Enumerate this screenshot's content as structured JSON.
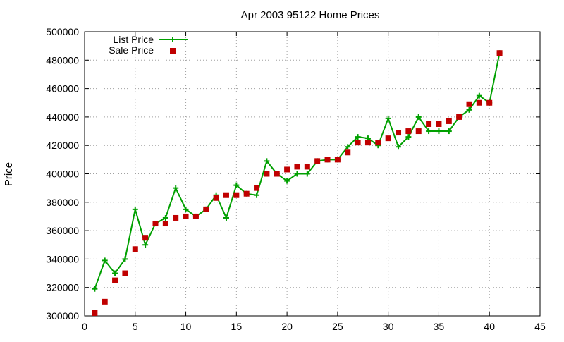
{
  "chart_data": {
    "type": "line",
    "title": "Apr 2003 95122 Home Prices",
    "xlabel": "",
    "ylabel": "Price",
    "xlim": [
      0,
      45
    ],
    "ylim": [
      300000,
      500000
    ],
    "x_ticks": [
      0,
      5,
      10,
      15,
      20,
      25,
      30,
      35,
      40,
      45
    ],
    "y_ticks": [
      300000,
      320000,
      340000,
      360000,
      380000,
      400000,
      420000,
      440000,
      460000,
      480000,
      500000
    ],
    "grid": true,
    "legend_position": "top-left",
    "series": [
      {
        "name": "List Price",
        "style": "line-with-plus-markers",
        "color": "#00a000",
        "points": [
          [
            1,
            319000
          ],
          [
            2,
            339000
          ],
          [
            3,
            330000
          ],
          [
            4,
            340000
          ],
          [
            5,
            375000
          ],
          [
            6,
            350000
          ],
          [
            7,
            365000
          ],
          [
            8,
            369000
          ],
          [
            9,
            390000
          ],
          [
            10,
            375000
          ],
          [
            11,
            370000
          ],
          [
            12,
            375000
          ],
          [
            13,
            385000
          ],
          [
            14,
            369000
          ],
          [
            15,
            392000
          ],
          [
            16,
            386000
          ],
          [
            17,
            385000
          ],
          [
            18,
            409000
          ],
          [
            19,
            400000
          ],
          [
            20,
            395000
          ],
          [
            21,
            400000
          ],
          [
            22,
            400000
          ],
          [
            23,
            409000
          ],
          [
            24,
            410000
          ],
          [
            25,
            410000
          ],
          [
            26,
            419000
          ],
          [
            27,
            426000
          ],
          [
            28,
            425000
          ],
          [
            29,
            420000
          ],
          [
            30,
            439000
          ],
          [
            31,
            419000
          ],
          [
            32,
            426000
          ],
          [
            33,
            440000
          ],
          [
            34,
            430000
          ],
          [
            35,
            430000
          ],
          [
            36,
            430000
          ],
          [
            37,
            440000
          ],
          [
            38,
            445000
          ],
          [
            39,
            455000
          ],
          [
            40,
            450000
          ],
          [
            41,
            485000
          ]
        ]
      },
      {
        "name": "Sale Price",
        "style": "square-markers",
        "color": "#c00000",
        "points": [
          [
            1,
            302000
          ],
          [
            2,
            310000
          ],
          [
            3,
            325000
          ],
          [
            4,
            330000
          ],
          [
            5,
            347000
          ],
          [
            6,
            355000
          ],
          [
            7,
            365000
          ],
          [
            8,
            365000
          ],
          [
            9,
            369000
          ],
          [
            10,
            370000
          ],
          [
            11,
            370000
          ],
          [
            12,
            375000
          ],
          [
            13,
            383000
          ],
          [
            14,
            385000
          ],
          [
            15,
            385000
          ],
          [
            16,
            386000
          ],
          [
            17,
            390000
          ],
          [
            18,
            400000
          ],
          [
            19,
            400000
          ],
          [
            20,
            403000
          ],
          [
            21,
            405000
          ],
          [
            22,
            405000
          ],
          [
            23,
            409000
          ],
          [
            24,
            410000
          ],
          [
            25,
            410000
          ],
          [
            26,
            415000
          ],
          [
            27,
            422000
          ],
          [
            28,
            422000
          ],
          [
            29,
            422000
          ],
          [
            30,
            425000
          ],
          [
            31,
            429000
          ],
          [
            32,
            430000
          ],
          [
            33,
            430000
          ],
          [
            34,
            435000
          ],
          [
            35,
            435000
          ],
          [
            36,
            437000
          ],
          [
            37,
            440000
          ],
          [
            38,
            449000
          ],
          [
            39,
            450000
          ],
          [
            40,
            450000
          ],
          [
            41,
            485000
          ]
        ]
      }
    ]
  }
}
